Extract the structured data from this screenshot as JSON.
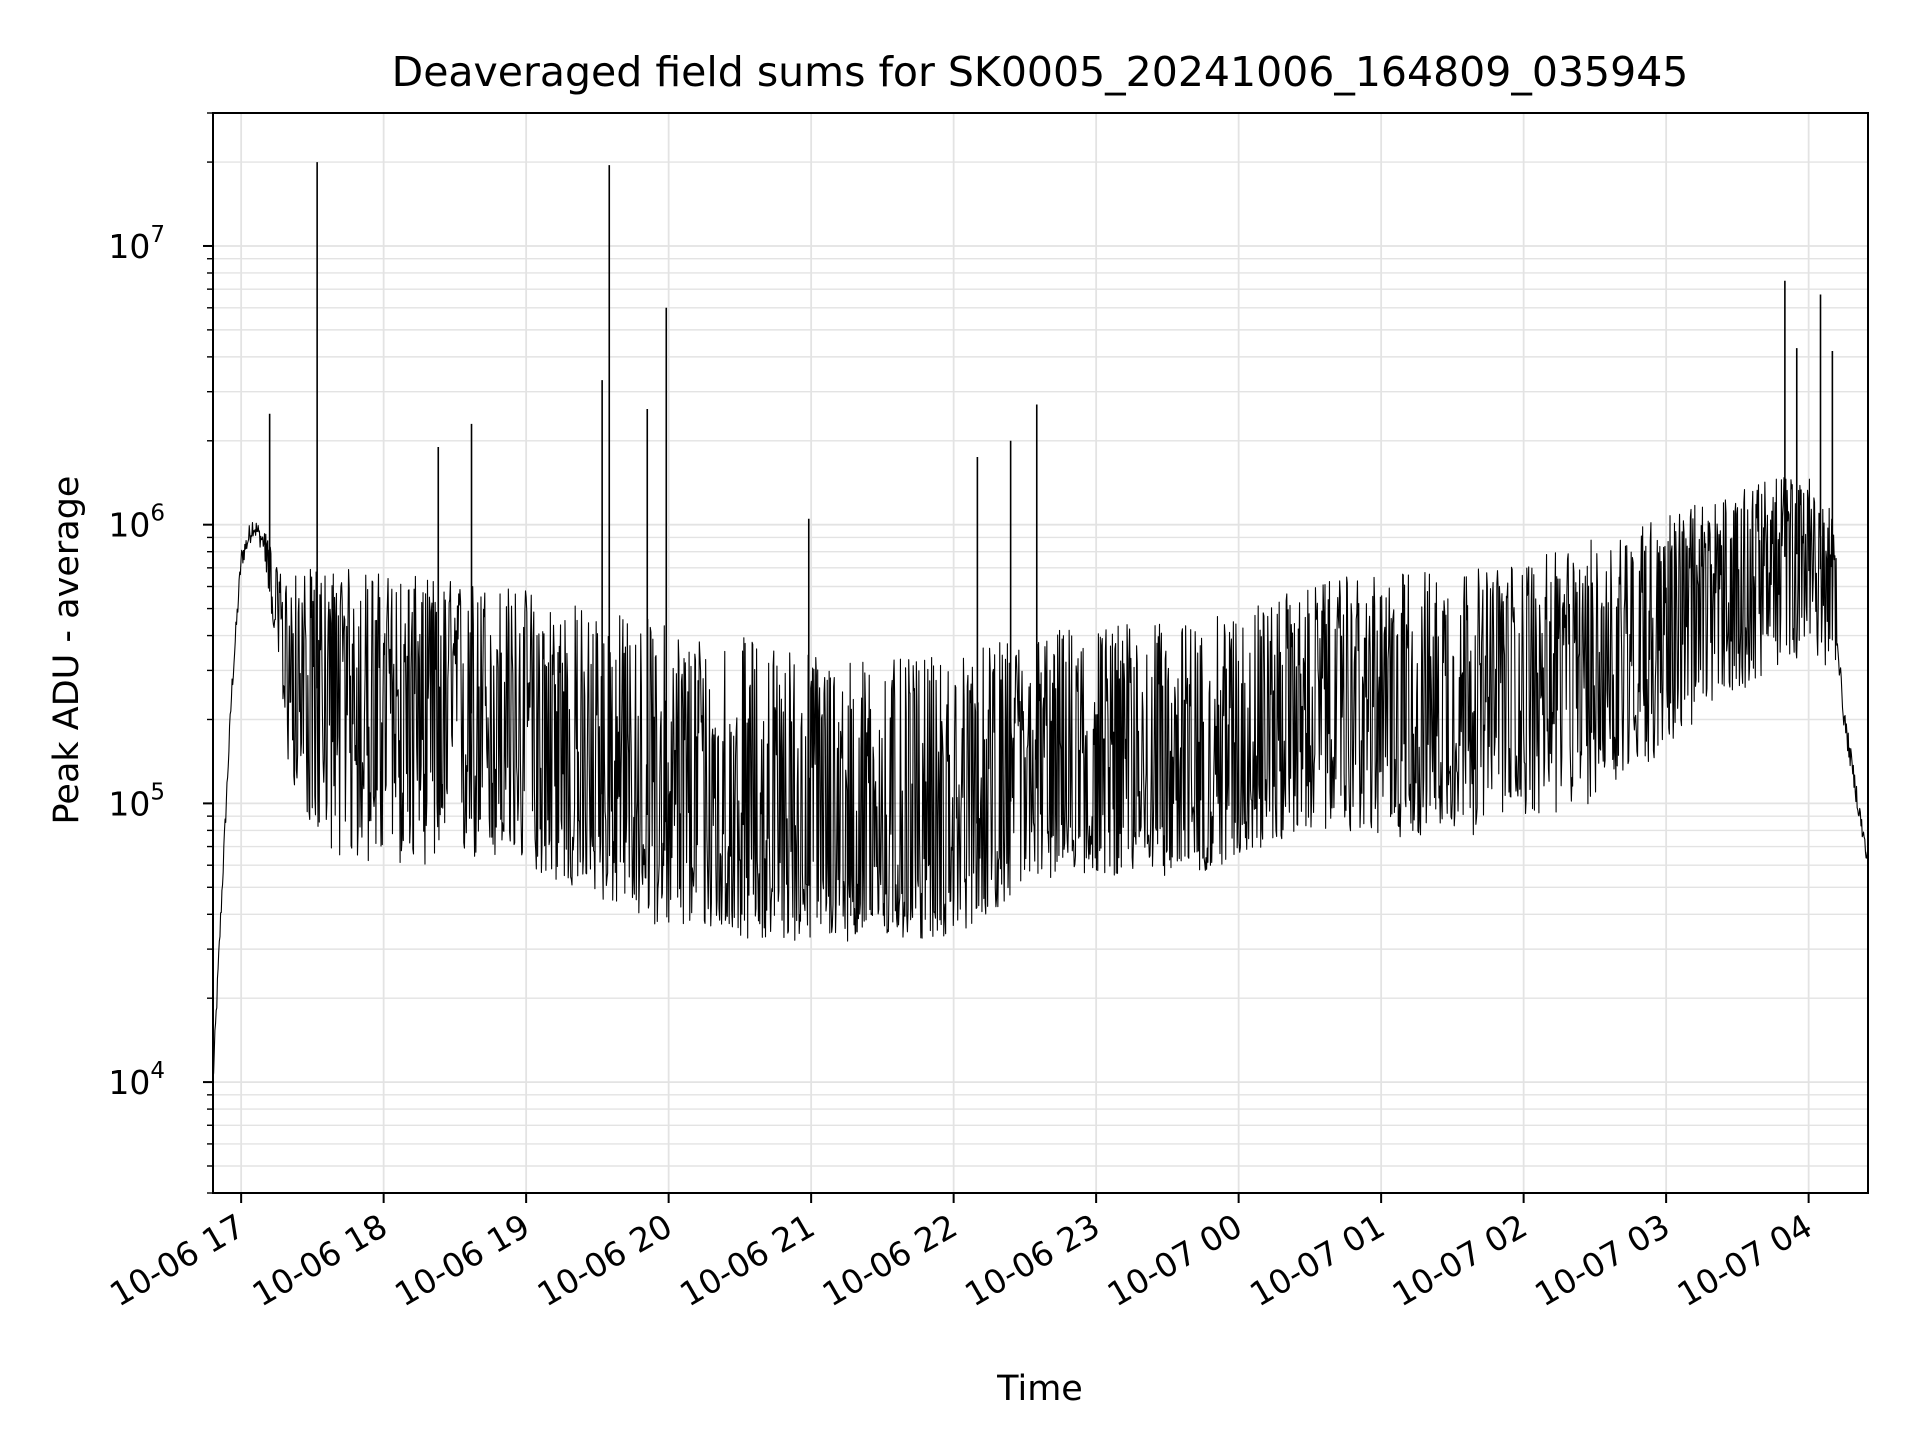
{
  "chart_data": {
    "type": "line",
    "title": "Deaveraged field sums for SK0005_20241006_164809_035945",
    "xlabel": "Time",
    "ylabel": "Peak ADU - average",
    "yscale": "log",
    "ylim": [
      4000,
      30000000
    ],
    "xlim": [
      "2024-10-06 16:48:09",
      "2024-10-07 04:25:00"
    ],
    "grid": true,
    "line_color": "#000000",
    "grid_color": "#e3e3e3",
    "x_ticks": [
      {
        "value": "2024-10-06 17:00",
        "label": "10-06 17"
      },
      {
        "value": "2024-10-06 18:00",
        "label": "10-06 18"
      },
      {
        "value": "2024-10-06 19:00",
        "label": "10-06 19"
      },
      {
        "value": "2024-10-06 20:00",
        "label": "10-06 20"
      },
      {
        "value": "2024-10-06 21:00",
        "label": "10-06 21"
      },
      {
        "value": "2024-10-06 22:00",
        "label": "10-06 22"
      },
      {
        "value": "2024-10-06 23:00",
        "label": "10-06 23"
      },
      {
        "value": "2024-10-07 00:00",
        "label": "10-07 00"
      },
      {
        "value": "2024-10-07 01:00",
        "label": "10-07 01"
      },
      {
        "value": "2024-10-07 02:00",
        "label": "10-07 02"
      },
      {
        "value": "2024-10-07 03:00",
        "label": "10-07 03"
      },
      {
        "value": "2024-10-07 04:00",
        "label": "10-07 04"
      }
    ],
    "y_ticks": [
      {
        "value": 10000,
        "base": "10",
        "exp": "4"
      },
      {
        "value": 100000,
        "base": "10",
        "exp": "5"
      },
      {
        "value": 1000000,
        "base": "10",
        "exp": "6"
      },
      {
        "value": 10000000,
        "base": "10",
        "exp": "7"
      }
    ],
    "series": [
      {
        "x": [
          "2024-10-06 16:48:09",
          "2024-10-06 16:52",
          "2024-10-06 16:56",
          "2024-10-06 17:00",
          "2024-10-06 17:05",
          "2024-10-06 17:10",
          "2024-10-06 17:15",
          "2024-10-06 17:20",
          "2024-10-06 17:30",
          "2024-10-06 17:45",
          "2024-10-06 18:00",
          "2024-10-06 18:15",
          "2024-10-06 18:30",
          "2024-10-06 18:45",
          "2024-10-06 19:00",
          "2024-10-06 19:15",
          "2024-10-06 19:30",
          "2024-10-06 19:45",
          "2024-10-06 20:00",
          "2024-10-06 20:15",
          "2024-10-06 20:30",
          "2024-10-06 20:45",
          "2024-10-06 21:00",
          "2024-10-06 21:15",
          "2024-10-06 21:30",
          "2024-10-06 21:45",
          "2024-10-06 22:00",
          "2024-10-06 22:15",
          "2024-10-06 22:30",
          "2024-10-06 22:45",
          "2024-10-06 23:00",
          "2024-10-06 23:15",
          "2024-10-06 23:30",
          "2024-10-06 23:45",
          "2024-10-07 00:00",
          "2024-10-07 00:15",
          "2024-10-07 00:30",
          "2024-10-07 00:45",
          "2024-10-07 01:00",
          "2024-10-07 01:15",
          "2024-10-07 01:30",
          "2024-10-07 01:45",
          "2024-10-07 02:00",
          "2024-10-07 02:15",
          "2024-10-07 02:30",
          "2024-10-07 02:45",
          "2024-10-07 03:00",
          "2024-10-07 03:15",
          "2024-10-07 03:30",
          "2024-10-07 03:45",
          "2024-10-07 04:00",
          "2024-10-07 04:10",
          "2024-10-07 04:15",
          "2024-10-07 04:20",
          "2024-10-07 04:25"
        ],
        "median": [
          10000,
          50000,
          250000,
          750000,
          1000000,
          850000,
          500000,
          280000,
          260000,
          250000,
          240000,
          230000,
          220000,
          200000,
          160000,
          130000,
          110000,
          95000,
          85000,
          80000,
          78000,
          75000,
          72000,
          70000,
          68000,
          70000,
          75000,
          90000,
          110000,
          120000,
          125000,
          125000,
          125000,
          125000,
          150000,
          180000,
          200000,
          210000,
          200000,
          220000,
          230000,
          210000,
          260000,
          280000,
          300000,
          380000,
          450000,
          550000,
          650000,
          750000,
          800000,
          600000,
          200000,
          110000,
          60000
        ],
        "high": [
          10000,
          60000,
          300000,
          900000,
          1150000,
          1000000,
          700000,
          650000,
          700000,
          700000,
          680000,
          650000,
          640000,
          620000,
          600000,
          550000,
          500000,
          480000,
          450000,
          420000,
          400000,
          380000,
          360000,
          340000,
          330000,
          330000,
          340000,
          370000,
          400000,
          430000,
          440000,
          450000,
          440000,
          450000,
          500000,
          550000,
          600000,
          650000,
          650000,
          700000,
          700000,
          700000,
          750000,
          800000,
          900000,
          1000000,
          1100000,
          1200000,
          1300000,
          1500000,
          1500000,
          1200000,
          400000,
          200000,
          80000
        ],
        "low": [
          10000,
          40000,
          200000,
          700000,
          900000,
          700000,
          350000,
          130000,
          80000,
          60000,
          60000,
          60000,
          60000,
          60000,
          60000,
          50000,
          45000,
          40000,
          35000,
          35000,
          33000,
          32000,
          32000,
          32000,
          32000,
          32000,
          33000,
          40000,
          50000,
          55000,
          55000,
          55000,
          55000,
          55000,
          65000,
          70000,
          80000,
          80000,
          75000,
          75000,
          80000,
          75000,
          90000,
          90000,
          100000,
          130000,
          150000,
          200000,
          250000,
          300000,
          350000,
          300000,
          120000,
          70000,
          45000
        ],
        "spikes": [
          {
            "x": "2024-10-06 17:12",
            "y": 2500000
          },
          {
            "x": "2024-10-06 17:32",
            "y": 20000000
          },
          {
            "x": "2024-10-06 18:23",
            "y": 1900000
          },
          {
            "x": "2024-10-06 18:37",
            "y": 2300000
          },
          {
            "x": "2024-10-06 19:32",
            "y": 3300000
          },
          {
            "x": "2024-10-06 19:35",
            "y": 19500000
          },
          {
            "x": "2024-10-06 19:51",
            "y": 2600000
          },
          {
            "x": "2024-10-06 19:59",
            "y": 6000000
          },
          {
            "x": "2024-10-06 20:59",
            "y": 1050000
          },
          {
            "x": "2024-10-06 22:10",
            "y": 1750000
          },
          {
            "x": "2024-10-06 22:24",
            "y": 2000000
          },
          {
            "x": "2024-10-06 22:35",
            "y": 2700000
          },
          {
            "x": "2024-10-07 03:50",
            "y": 7500000
          },
          {
            "x": "2024-10-07 04:05",
            "y": 6700000
          },
          {
            "x": "2024-10-07 03:55",
            "y": 4300000
          },
          {
            "x": "2024-10-07 04:10",
            "y": 4200000
          }
        ]
      }
    ]
  }
}
